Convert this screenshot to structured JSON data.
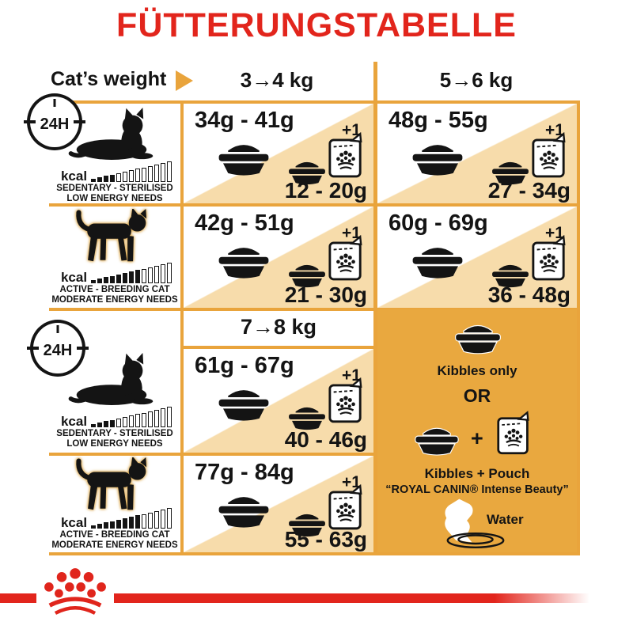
{
  "title": "FÜTTERUNGSTABELLE",
  "header": {
    "label": "Cat’s weight",
    "weights": [
      "3→4 kg",
      "5→6 kg",
      "7→8 kg"
    ]
  },
  "clock": {
    "label": "24H"
  },
  "profiles": {
    "sedentary": {
      "kcal": "kcal",
      "line1": "SEDENTARY - STERILISED",
      "line2": "LOW ENERGY NEEDS"
    },
    "active": {
      "kcal": "kcal",
      "line1": "ACTIVE - BREEDING CAT",
      "line2": "MODERATE ENERGY NEEDS"
    }
  },
  "kcal_scale": {
    "total_bars": 13,
    "sedentary_filled": 4,
    "active_filled": 8
  },
  "cells": {
    "r1c1": {
      "kibbles": "34g - 41g",
      "plus": "+1",
      "pouch": "12 - 20g"
    },
    "r1c2": {
      "kibbles": "48g - 55g",
      "plus": "+1",
      "pouch": "27 - 34g"
    },
    "r2c1": {
      "kibbles": "42g - 51g",
      "plus": "+1",
      "pouch": "21 - 30g"
    },
    "r2c2": {
      "kibbles": "60g - 69g",
      "plus": "+1",
      "pouch": "36 - 48g"
    },
    "r3c1": {
      "kibbles": "61g - 67g",
      "plus": "+1",
      "pouch": "40 - 46g"
    },
    "r4c1": {
      "kibbles": "77g - 84g",
      "plus": "+1",
      "pouch": "55 - 63g"
    }
  },
  "panel": {
    "kibbles_only": "Kibbles only",
    "or": "OR",
    "plus": "+",
    "kibbles_pouch": "Kibbles + Pouch",
    "product": "“ROYAL CANIN® Intense Beauty”",
    "water": "Water"
  },
  "colors": {
    "red": "#e2251c",
    "gold_border": "#e9a43c",
    "beige_triangle": "#f7dcab",
    "panel_gold": "#e9a83f"
  },
  "chart_data": {
    "type": "table",
    "columns": [
      "3→4 kg",
      "5→6 kg",
      "7→8 kg"
    ],
    "rows": [
      {
        "profile": "SEDENTARY - STERILISED / LOW ENERGY NEEDS",
        "kibbles_only": [
          "34g - 41g",
          "48g - 55g",
          "61g - 67g"
        ],
        "kibbles_plus_pouch": [
          "12 - 20g",
          "27 - 34g",
          "40 - 46g"
        ]
      },
      {
        "profile": "ACTIVE - BREEDING CAT / MODERATE ENERGY NEEDS",
        "kibbles_only": [
          "42g - 51g",
          "60g - 69g",
          "77g - 84g"
        ],
        "kibbles_plus_pouch": [
          "21 - 30g",
          "36 - 48g",
          "55 - 63g"
        ]
      }
    ]
  }
}
